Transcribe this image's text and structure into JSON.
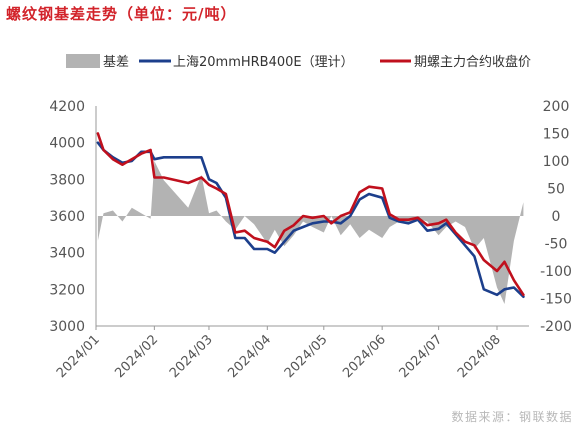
{
  "title": "螺纹钢基差走势（单位：元/吨）",
  "source": "数据来源：钢联数据",
  "chart_data": {
    "type": "line",
    "legend_position": "top",
    "colors": {
      "basis": "#b3b3b3",
      "spot": "#1c3f8c",
      "futures": "#c0101d"
    },
    "x_tick_labels": [
      "2024/01",
      "2024/02",
      "2024/03",
      "2024/04",
      "2024/05",
      "2024/06",
      "2024/07",
      "2024/08"
    ],
    "y_left": {
      "range": [
        3000,
        4200
      ],
      "ticks": [
        3000,
        3200,
        3400,
        3600,
        3800,
        4000,
        4200
      ]
    },
    "y_right": {
      "range": [
        -200,
        200
      ],
      "ticks": [
        -200,
        -150,
        -100,
        -50,
        0,
        50,
        100,
        150,
        200
      ]
    },
    "x": [
      "2024-01-02",
      "2024-01-05",
      "2024-01-10",
      "2024-01-15",
      "2024-01-20",
      "2024-01-25",
      "2024-01-30",
      "2024-02-01",
      "2024-02-06",
      "2024-02-19",
      "2024-02-26",
      "2024-03-01",
      "2024-03-05",
      "2024-03-10",
      "2024-03-15",
      "2024-03-20",
      "2024-03-25",
      "2024-04-01",
      "2024-04-05",
      "2024-04-10",
      "2024-04-15",
      "2024-04-20",
      "2024-04-25",
      "2024-05-01",
      "2024-05-05",
      "2024-05-10",
      "2024-05-15",
      "2024-05-20",
      "2024-05-25",
      "2024-06-01",
      "2024-06-05",
      "2024-06-10",
      "2024-06-15",
      "2024-06-20",
      "2024-06-25",
      "2024-07-01",
      "2024-07-05",
      "2024-07-10",
      "2024-07-15",
      "2024-07-20",
      "2024-07-25",
      "2024-08-01",
      "2024-08-05",
      "2024-08-10",
      "2024-08-15"
    ],
    "series": [
      {
        "name": "基差",
        "type": "area",
        "axis": "right",
        "values": [
          -45,
          5,
          10,
          -10,
          15,
          5,
          -5,
          100,
          65,
          15,
          75,
          5,
          10,
          -10,
          -25,
          0,
          -15,
          -50,
          -25,
          -55,
          -35,
          -10,
          -20,
          -30,
          0,
          -35,
          -15,
          -40,
          -25,
          -40,
          -20,
          -10,
          -15,
          -5,
          -10,
          -35,
          -20,
          -10,
          -20,
          -60,
          -40,
          -130,
          -160,
          -45,
          25
        ]
      },
      {
        "name": "上海20mmHRB400E（理计）",
        "type": "line",
        "axis": "left",
        "values": [
          4000,
          3960,
          3920,
          3890,
          3900,
          3950,
          3950,
          3910,
          3920,
          3920,
          3920,
          3800,
          3780,
          3700,
          3480,
          3480,
          3420,
          3420,
          3400,
          3460,
          3520,
          3540,
          3560,
          3570,
          3570,
          3560,
          3600,
          3690,
          3720,
          3700,
          3590,
          3570,
          3560,
          3580,
          3520,
          3530,
          3560,
          3500,
          3440,
          3380,
          3200,
          3170,
          3200,
          3210,
          3160
        ]
      },
      {
        "name": "期螺主力合约收盘价",
        "type": "line",
        "axis": "left",
        "values": [
          4050,
          3960,
          3910,
          3880,
          3910,
          3940,
          3960,
          3810,
          3810,
          3780,
          3810,
          3770,
          3750,
          3720,
          3510,
          3520,
          3480,
          3460,
          3430,
          3520,
          3550,
          3600,
          3590,
          3600,
          3560,
          3600,
          3620,
          3730,
          3760,
          3750,
          3610,
          3580,
          3580,
          3590,
          3550,
          3560,
          3580,
          3510,
          3460,
          3440,
          3360,
          3300,
          3350,
          3250,
          3170
        ]
      }
    ]
  }
}
